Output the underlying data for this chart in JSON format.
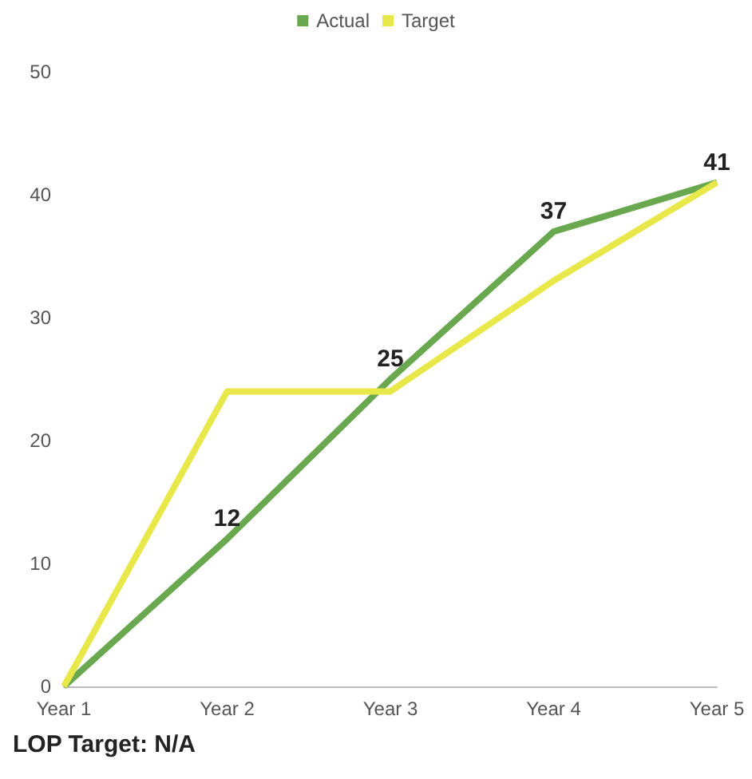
{
  "chart_data": {
    "type": "line",
    "categories": [
      "Year 1",
      "Year 2",
      "Year 3",
      "Year 4",
      "Year 5"
    ],
    "series": [
      {
        "name": "Actual",
        "color": "#6aa84f",
        "values": [
          0,
          12,
          25,
          37,
          41
        ],
        "value_labels": [
          null,
          "12",
          "25",
          "37",
          "41"
        ]
      },
      {
        "name": "Target",
        "color": "#e8e84a",
        "values": [
          0,
          24,
          24,
          33,
          41
        ]
      }
    ],
    "ylim": [
      0,
      50
    ],
    "yticks": [
      0,
      10,
      20,
      30,
      40,
      50
    ],
    "grid": false,
    "legend": "top",
    "marker": "none",
    "line_style": "solid",
    "annotations": [
      "LOP Target: N/A"
    ]
  }
}
